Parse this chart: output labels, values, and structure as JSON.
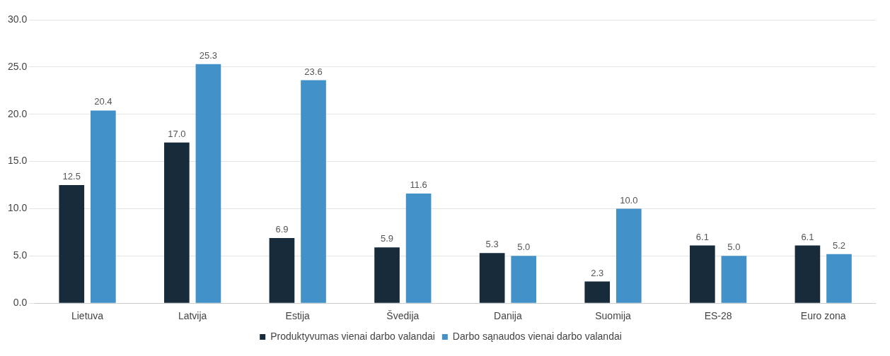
{
  "chart_data": {
    "type": "bar",
    "categories": [
      "Lietuva",
      "Latvija",
      "Estija",
      "Švedija",
      "Danija",
      "Suomija",
      "ES-28",
      "Euro zona"
    ],
    "series": [
      {
        "name": "Produktyvumas vienai darbo valandai",
        "color": "#172b3a",
        "values": [
          12.5,
          17,
          6.9,
          5.9,
          5.3,
          2.3,
          6.1,
          6.1
        ],
        "value_labels": [
          "12.5",
          "17.0",
          "6.9",
          "5.9",
          "5.3",
          "2.3",
          "6.1",
          "6.1"
        ]
      },
      {
        "name": "Darbo sąnaudos vienai darbo valandai",
        "color": "#4292c9",
        "values": [
          20.4,
          25.3,
          23.6,
          11.6,
          5,
          10,
          5,
          5.2
        ],
        "value_labels": [
          "20.4",
          "25.3",
          "23.6",
          "11.6",
          "5.0",
          "10.0",
          "5.0",
          "5.2"
        ]
      }
    ],
    "ylim": [
      0,
      30
    ],
    "yticks": [
      {
        "value": 0,
        "label": "0.0"
      },
      {
        "value": 5,
        "label": "5.0"
      },
      {
        "value": 10,
        "label": "10.0"
      },
      {
        "value": 15,
        "label": "15.0"
      },
      {
        "value": 20,
        "label": "20.0"
      },
      {
        "value": 25,
        "label": "25.0"
      },
      {
        "value": 30,
        "label": "30.0"
      }
    ],
    "grid": "y",
    "legend": "bottom"
  }
}
